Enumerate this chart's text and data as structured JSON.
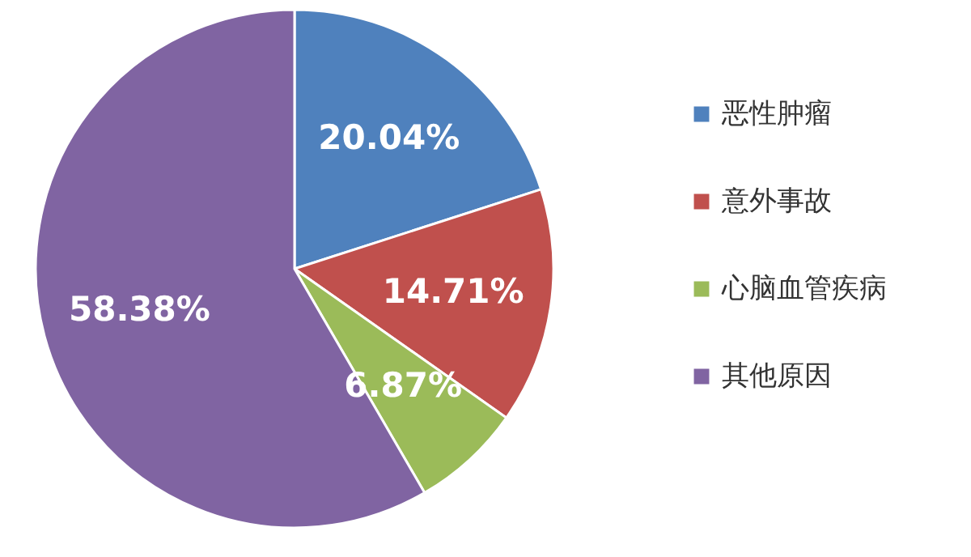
{
  "chart_data": {
    "type": "pie",
    "categories": [
      "恶性肿瘤",
      "意外事故",
      "心脑血管疾病",
      "其他原因"
    ],
    "values": [
      20.04,
      14.71,
      6.87,
      58.38
    ],
    "value_labels": [
      "20.04%",
      "14.71%",
      "6.87%",
      "58.38%"
    ],
    "colors": [
      "#4f81bd",
      "#c0504d",
      "#9bbb59",
      "#8064a2"
    ],
    "legend": "right"
  }
}
